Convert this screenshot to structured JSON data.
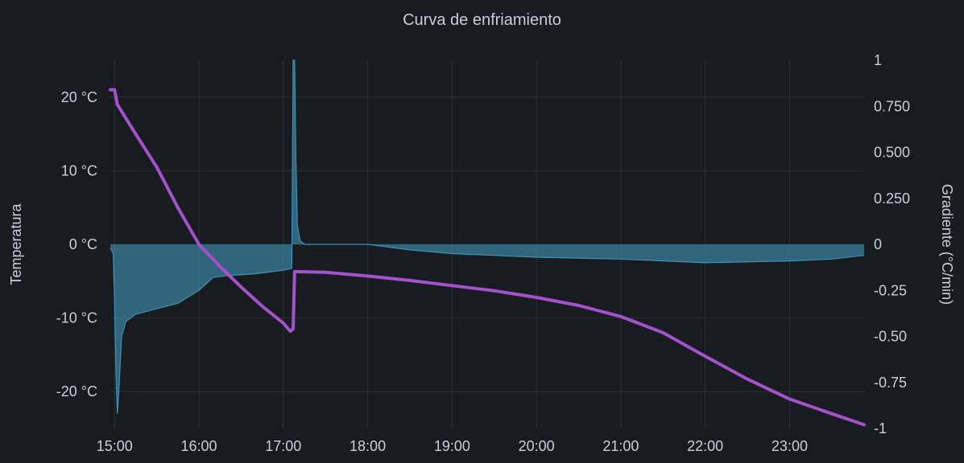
{
  "panel": {
    "title": "Curva de enfriamiento"
  },
  "colors": {
    "background": "#181b1f",
    "grid": "#2c3035",
    "text": "#ccccdc",
    "temperature": "#a352cc",
    "gradient_line": "#3a92b7",
    "gradient_fill": "#3d8eae"
  },
  "chart_data": {
    "type": "line",
    "title": "Curva de enfriamiento",
    "x_ticks": [
      "15:00",
      "16:00",
      "17:00",
      "18:00",
      "19:00",
      "20:00",
      "21:00",
      "22:00",
      "23:00"
    ],
    "x_range": [
      "14:57",
      "23:53"
    ],
    "y_left": {
      "label": "Temperatura",
      "unit": "°C",
      "range": [
        -25,
        25
      ],
      "ticks": [
        20,
        10,
        0,
        -10,
        -20
      ],
      "tick_labels": [
        "20 °C",
        "10 °C",
        "0 °C",
        "-10 °C",
        "-20 °C"
      ]
    },
    "y_right": {
      "label": "Gradiente (°C/min)",
      "range": [
        -1,
        1
      ],
      "ticks": [
        1,
        0.75,
        0.5,
        0.25,
        0,
        -0.25,
        -0.5,
        -0.75,
        -1
      ],
      "tick_labels": [
        "1",
        "0.750",
        "0.500",
        "0.250",
        "0",
        "-0.25",
        "-0.50",
        "-0.75",
        "-1"
      ]
    },
    "grid": true,
    "legend": "none",
    "series": [
      {
        "axis": "left",
        "color": "#a352cc",
        "points": [
          [
            "14:57",
            21
          ],
          [
            "15:00",
            21
          ],
          [
            "15:02",
            19
          ],
          [
            "15:15",
            15
          ],
          [
            "15:30",
            10.5
          ],
          [
            "15:45",
            5
          ],
          [
            "16:00",
            0
          ],
          [
            "16:15",
            -3
          ],
          [
            "16:30",
            -5.8
          ],
          [
            "16:45",
            -8.4
          ],
          [
            "17:00",
            -10.7
          ],
          [
            "17:05",
            -11.8
          ],
          [
            "17:07",
            -11.5
          ],
          [
            "17:08",
            -3.7
          ],
          [
            "17:30",
            -3.8
          ],
          [
            "18:00",
            -4.3
          ],
          [
            "18:30",
            -4.9
          ],
          [
            "19:00",
            -5.6
          ],
          [
            "19:30",
            -6.3
          ],
          [
            "20:00",
            -7.2
          ],
          [
            "20:30",
            -8.3
          ],
          [
            "21:00",
            -9.8
          ],
          [
            "21:30",
            -12
          ],
          [
            "22:00",
            -15.2
          ],
          [
            "22:30",
            -18.3
          ],
          [
            "23:00",
            -21
          ],
          [
            "23:30",
            -23
          ],
          [
            "23:53",
            -24.5
          ]
        ]
      },
      {
        "axis": "right",
        "style": "area",
        "color": "#3a92b7",
        "points": [
          [
            "14:57",
            -0.02
          ],
          [
            "14:59",
            -0.05
          ],
          [
            "15:00",
            -0.3
          ],
          [
            "15:01",
            -0.7
          ],
          [
            "15:02",
            -0.92
          ],
          [
            "15:03",
            -0.8
          ],
          [
            "15:05",
            -0.5
          ],
          [
            "15:08",
            -0.42
          ],
          [
            "15:15",
            -0.38
          ],
          [
            "15:30",
            -0.35
          ],
          [
            "15:45",
            -0.32
          ],
          [
            "16:00",
            -0.25
          ],
          [
            "16:10",
            -0.18
          ],
          [
            "16:20",
            -0.17
          ],
          [
            "16:40",
            -0.16
          ],
          [
            "17:00",
            -0.14
          ],
          [
            "17:06",
            -0.13
          ],
          [
            "17:07",
            1.0
          ],
          [
            "17:08",
            1.0
          ],
          [
            "17:09",
            0.45
          ],
          [
            "17:10",
            0.1
          ],
          [
            "17:12",
            0.02
          ],
          [
            "17:15",
            0
          ],
          [
            "18:00",
            0.0
          ],
          [
            "18:30",
            -0.03
          ],
          [
            "19:00",
            -0.05
          ],
          [
            "20:00",
            -0.07
          ],
          [
            "21:00",
            -0.08
          ],
          [
            "22:00",
            -0.1
          ],
          [
            "23:00",
            -0.09
          ],
          [
            "23:30",
            -0.08
          ],
          [
            "23:53",
            -0.06
          ]
        ]
      }
    ]
  }
}
